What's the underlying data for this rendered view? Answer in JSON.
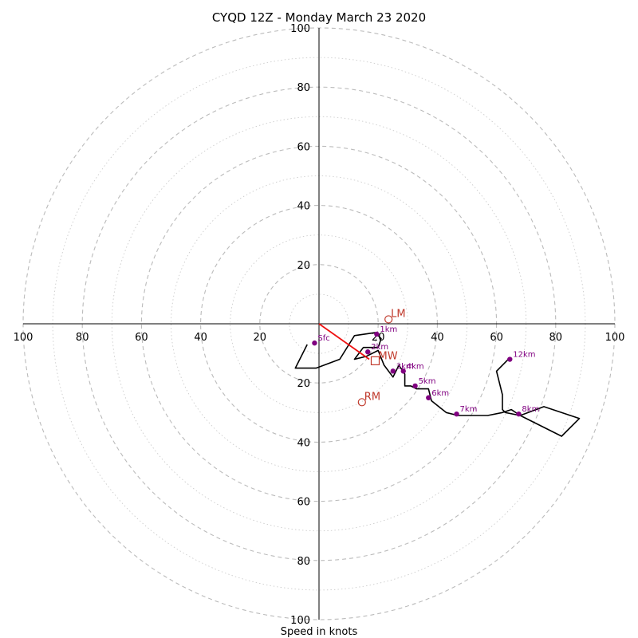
{
  "chart_data": {
    "type": "scatter",
    "subtype": "hodograph",
    "title": "CYQD 12Z - Monday March 23 2020",
    "xlabel": "Speed in knots",
    "axis_max": 100,
    "major_ring_step": 20,
    "minor_ring_step": 10,
    "x_tick_labels": [
      "100",
      "80",
      "60",
      "40",
      "20",
      "20",
      "40",
      "60",
      "80",
      "100"
    ],
    "y_tick_labels": [
      "100",
      "80",
      "60",
      "40",
      "20",
      "20",
      "40",
      "60",
      "80",
      "100"
    ],
    "grid": true,
    "trace_color": "#000000",
    "label_color": "#800080",
    "motion_color": "#c0392b",
    "hodograph_trace": [
      [
        -4,
        -7
      ],
      [
        -8,
        -15
      ],
      [
        -1,
        -15
      ],
      [
        7,
        -12
      ],
      [
        12,
        -4
      ],
      [
        19,
        -3
      ],
      [
        20,
        -4
      ],
      [
        21,
        -5
      ],
      [
        20,
        -8
      ],
      [
        15,
        -8
      ],
      [
        12,
        -12
      ],
      [
        16,
        -11
      ],
      [
        20,
        -9
      ],
      [
        22,
        -14
      ],
      [
        25,
        -18
      ],
      [
        27,
        -14
      ],
      [
        29,
        -17
      ],
      [
        29,
        -21
      ],
      [
        31,
        -21
      ],
      [
        33,
        -22
      ],
      [
        37,
        -22
      ],
      [
        38,
        -26
      ],
      [
        43,
        -30
      ],
      [
        47,
        -31
      ],
      [
        57,
        -31
      ],
      [
        62,
        -30
      ],
      [
        65,
        -29
      ],
      [
        68,
        -31
      ],
      [
        76,
        -28
      ],
      [
        88,
        -32
      ],
      [
        82,
        -38
      ],
      [
        68,
        -31
      ],
      [
        63,
        -30
      ],
      [
        62,
        -29
      ],
      [
        62,
        -24
      ],
      [
        60,
        -16
      ],
      [
        64,
        -12
      ]
    ],
    "height_points": [
      {
        "label": "Sfc",
        "x": -1.5,
        "y": -6.5
      },
      {
        "label": "1km",
        "x": 19.5,
        "y": -3.5
      },
      {
        "label": "2km",
        "x": 16.5,
        "y": -9.5
      },
      {
        "label": "3km",
        "x": 25,
        "y": -16
      },
      {
        "label": "4km",
        "x": 28.5,
        "y": -16
      },
      {
        "label": "5km",
        "x": 32.5,
        "y": -21
      },
      {
        "label": "6km",
        "x": 37,
        "y": -25
      },
      {
        "label": "7km",
        "x": 46.5,
        "y": -30.5
      },
      {
        "label": "8km",
        "x": 67.5,
        "y": -30.5
      },
      {
        "label": "12km",
        "x": 64.5,
        "y": -12
      }
    ],
    "storm_motions": [
      {
        "label": "LM",
        "marker": "circle",
        "x": 23.5,
        "y": 1.5
      },
      {
        "label": "RM",
        "marker": "circle",
        "x": 14.5,
        "y": -26.5
      },
      {
        "label": "MW",
        "marker": "square",
        "x": 19,
        "y": -12.5
      }
    ],
    "shear_vector": {
      "from": [
        0,
        0
      ],
      "to": [
        17,
        -12
      ]
    }
  }
}
